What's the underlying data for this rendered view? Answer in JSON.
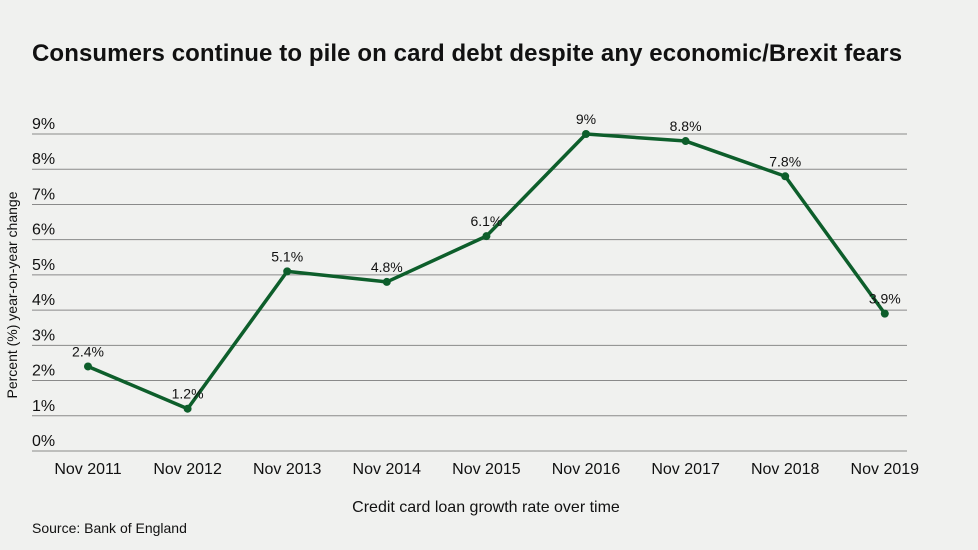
{
  "title": "Consumers continue to pile on card debt despite any economic/Brexit fears",
  "source": "Source: Bank of England",
  "chart_data": {
    "type": "line",
    "title": "Consumers continue to pile on card debt despite any economic/Brexit fears",
    "xlabel": "Credit card loan growth rate over time",
    "ylabel": "Percent (%) year-on-year change",
    "categories": [
      "Nov 2011",
      "Nov 2012",
      "Nov 2013",
      "Nov 2014",
      "Nov 2015",
      "Nov 2016",
      "Nov 2017",
      "Nov 2018",
      "Nov 2019"
    ],
    "values": [
      2.4,
      1.2,
      5.1,
      4.8,
      6.1,
      9.0,
      8.8,
      7.8,
      3.9
    ],
    "data_labels": [
      "2.4%",
      "1.2%",
      "5.1%",
      "4.8%",
      "6.1%",
      "9%",
      "8.8%",
      "7.8%",
      "3.9%"
    ],
    "y_ticks": [
      "0%",
      "1%",
      "2%",
      "3%",
      "4%",
      "5%",
      "6%",
      "7%",
      "8%",
      "9%"
    ],
    "ylim": [
      0,
      9
    ],
    "grid": true,
    "colors": {
      "line": "#0d5e2b",
      "grid": "#8a8a8a"
    }
  }
}
